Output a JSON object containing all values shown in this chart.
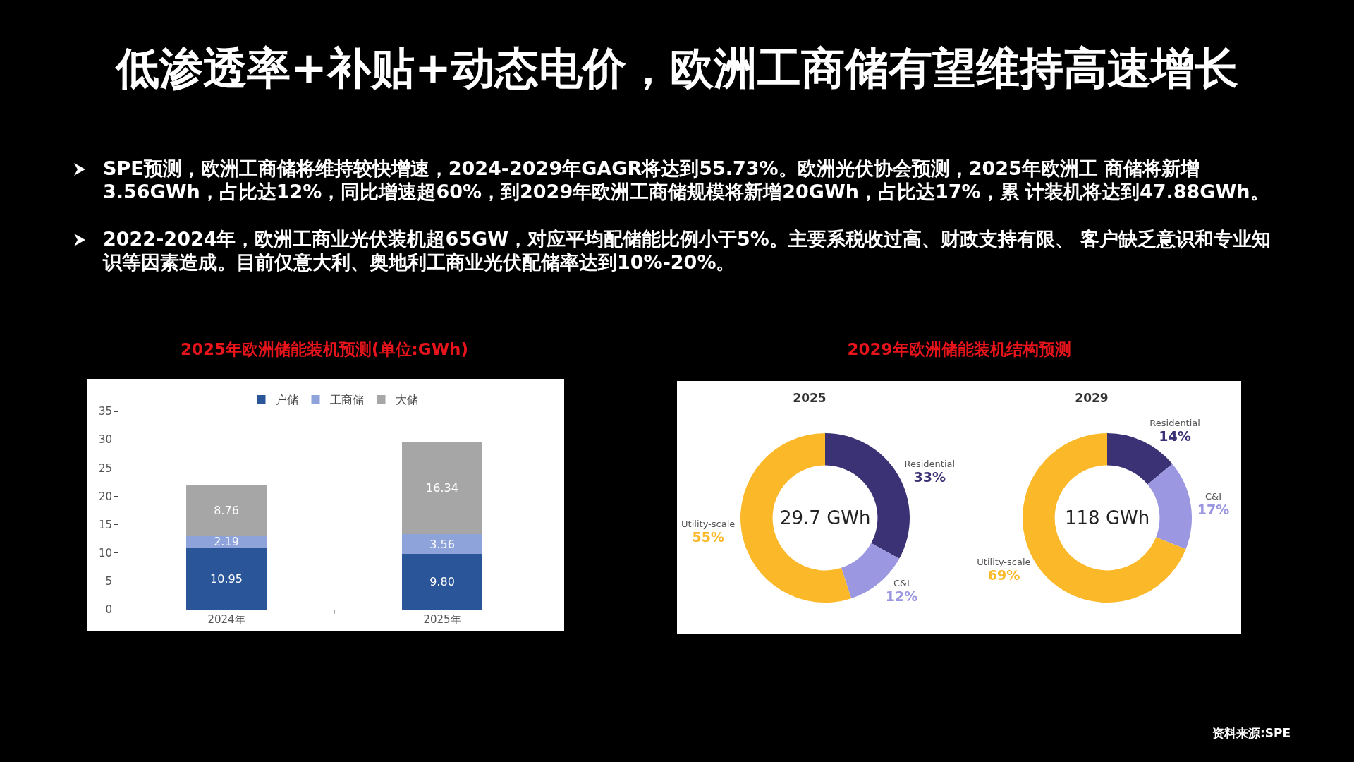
{
  "chart_data": [
    {
      "type": "other",
      "title": "低渗透率+补贴+动态电价，欧洲工商储有望维持高速增长",
      "annotations": [
        "SPE预测，欧洲工商储将维持较快增速，2024-2029年GAGR将达到55.73%。欧洲光伏协会预测，2025年欧洲工 商储将新增3.56GWh，占比达12%，同比增速超60%，到2029年欧洲工商储规模将新增20GWh，占比达17%，累 计装机将达到47.88GWh。",
        "2022-2024年，欧洲工商业光伏装机超65GW，对应平均配储能比例小于5%。主要系税收过高、财政支持有限、 客户缺乏意识和专业知识等因素造成。目前仅意大利、奥地利工商业光伏配储率达到10%-20%。",
        "资料来源:SPE"
      ]
    },
    {
      "type": "bar",
      "stacked": true,
      "title": "2025年欧洲储能装机预测(单位:GWh)",
      "categories": [
        "2024年",
        "2025年"
      ],
      "ylim": [
        0,
        35
      ],
      "yticks": [
        0,
        5,
        10,
        15,
        20,
        25,
        30,
        35
      ],
      "legend": "top",
      "series": [
        {
          "name": "户储",
          "color": "#2a5599",
          "values": [
            10.95,
            9.8
          ],
          "value_labels": [
            "10.95",
            "9.80"
          ]
        },
        {
          "name": "工商储",
          "color": "#8fa3db",
          "values": [
            2.19,
            3.56
          ],
          "value_labels": [
            "2.19",
            "3.56"
          ]
        },
        {
          "name": "大储",
          "color": "#a6a6a6",
          "values": [
            8.76,
            16.34
          ],
          "value_labels": [
            "8.76",
            "16.34"
          ]
        }
      ]
    },
    {
      "type": "donut",
      "title": "2029年欧洲储能装机结构预测",
      "subtitle": "2025",
      "categories": [
        "Residential",
        "C&I",
        "Utility-scale"
      ],
      "values": [
        33,
        12,
        55
      ],
      "value_labels": [
        "33%",
        "12%",
        "55%"
      ],
      "colors": [
        "#3b3275",
        "#9b97e0",
        "#fbb829"
      ],
      "annotations": [
        "29.7 GWh"
      ]
    },
    {
      "type": "donut",
      "subtitle": "2029",
      "categories": [
        "Residential",
        "C&I",
        "Utility-scale"
      ],
      "values": [
        14,
        17,
        69
      ],
      "value_labels": [
        "14%",
        "17%",
        "69%"
      ],
      "colors": [
        "#3b3275",
        "#9b97e0",
        "#fbb829"
      ],
      "annotations": [
        "118 GWh"
      ]
    }
  ]
}
